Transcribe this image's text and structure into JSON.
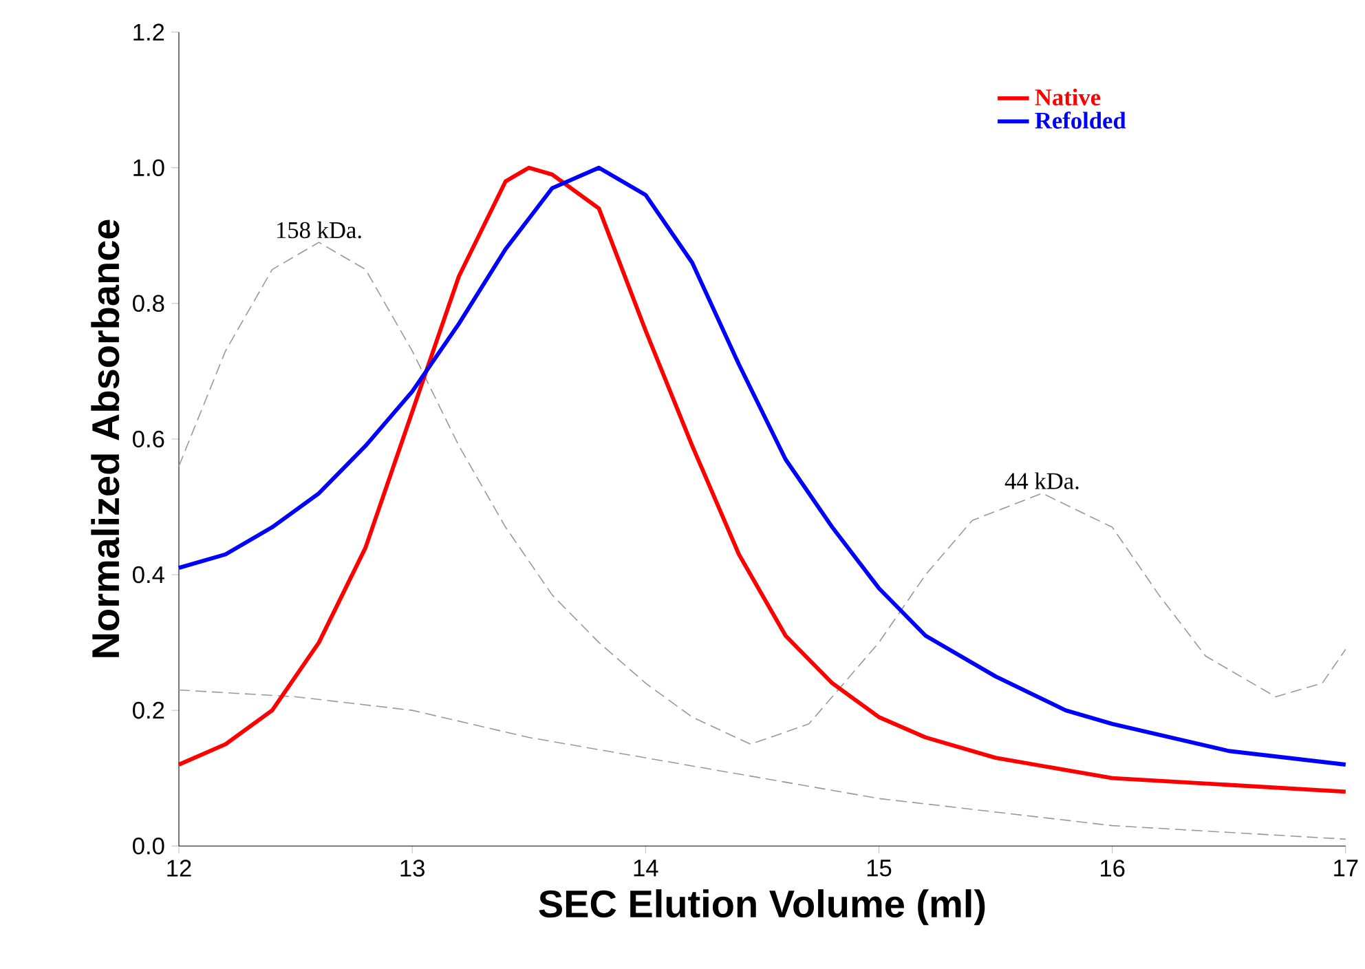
{
  "chart_data": {
    "type": "line",
    "xlabel": "SEC Elution Volume (ml)",
    "ylabel": "Normalized Absorbance",
    "xlim": [
      12,
      17
    ],
    "xticks": [
      12,
      13,
      14,
      15,
      16,
      17
    ],
    "ylim": [
      0,
      1.2
    ],
    "yticks": [
      {
        "value": 0,
        "label": "0.0"
      },
      {
        "value": 0.2,
        "label": "0.2"
      },
      {
        "value": 0.4,
        "label": "0.4"
      },
      {
        "value": 0.6,
        "label": "0.6"
      },
      {
        "value": 0.8,
        "label": "0.8"
      },
      {
        "value": 1.0,
        "label": "1.0"
      },
      {
        "value": 1.2,
        "label": "1.2"
      }
    ],
    "grid": false,
    "legend": "top right",
    "marker": "none",
    "annotations": [
      {
        "text": "158 kDa.",
        "x": 12.6,
        "y": 0.89
      },
      {
        "text": "44 kDa.",
        "x": 15.7,
        "y": 0.52
      }
    ],
    "series": [
      {
        "color": "#999999",
        "line_style": "dashed",
        "x": [
          12,
          12.2,
          12.4,
          12.6,
          12.8,
          13.0,
          13.2,
          13.4,
          13.6,
          13.8,
          14.0,
          14.2,
          14.45,
          14.7,
          15.0,
          15.2,
          15.4,
          15.7,
          16.0,
          16.2,
          16.4,
          16.7,
          16.9,
          17
        ],
        "values": [
          0.56,
          0.73,
          0.85,
          0.89,
          0.85,
          0.73,
          0.59,
          0.47,
          0.37,
          0.3,
          0.24,
          0.19,
          0.15,
          0.18,
          0.3,
          0.4,
          0.48,
          0.52,
          0.47,
          0.37,
          0.28,
          0.22,
          0.24,
          0.29
        ]
      },
      {
        "color": "#999999",
        "line_style": "dashed",
        "x": [
          12,
          12.5,
          13,
          13.5,
          14,
          14.5,
          15,
          15.5,
          16,
          16.5,
          17
        ],
        "values": [
          0.23,
          0.22,
          0.2,
          0.16,
          0.13,
          0.1,
          0.07,
          0.05,
          0.03,
          0.02,
          0.01
        ]
      },
      {
        "name": "Native",
        "color": "#ff0000",
        "line_style": "solid",
        "x": [
          12,
          12.2,
          12.4,
          12.6,
          12.8,
          13.0,
          13.2,
          13.4,
          13.5,
          13.6,
          13.8,
          14.0,
          14.2,
          14.4,
          14.6,
          14.8,
          15.0,
          15.2,
          15.5,
          16,
          16.5,
          17
        ],
        "values": [
          0.12,
          0.15,
          0.2,
          0.3,
          0.44,
          0.64,
          0.84,
          0.98,
          1.0,
          0.99,
          0.94,
          0.76,
          0.59,
          0.43,
          0.31,
          0.24,
          0.19,
          0.16,
          0.13,
          0.1,
          0.09,
          0.08
        ]
      },
      {
        "name": "Refolded",
        "color": "#0000ff",
        "line_style": "solid",
        "x": [
          12,
          12.2,
          12.4,
          12.6,
          12.8,
          13.0,
          13.2,
          13.4,
          13.6,
          13.8,
          14.0,
          14.2,
          14.4,
          14.6,
          14.8,
          15.0,
          15.2,
          15.5,
          15.8,
          16.0,
          16.5,
          17
        ],
        "values": [
          0.41,
          0.43,
          0.47,
          0.52,
          0.59,
          0.67,
          0.77,
          0.88,
          0.97,
          1.0,
          0.96,
          0.86,
          0.71,
          0.57,
          0.47,
          0.38,
          0.31,
          0.25,
          0.2,
          0.18,
          0.14,
          0.12
        ]
      }
    ]
  }
}
